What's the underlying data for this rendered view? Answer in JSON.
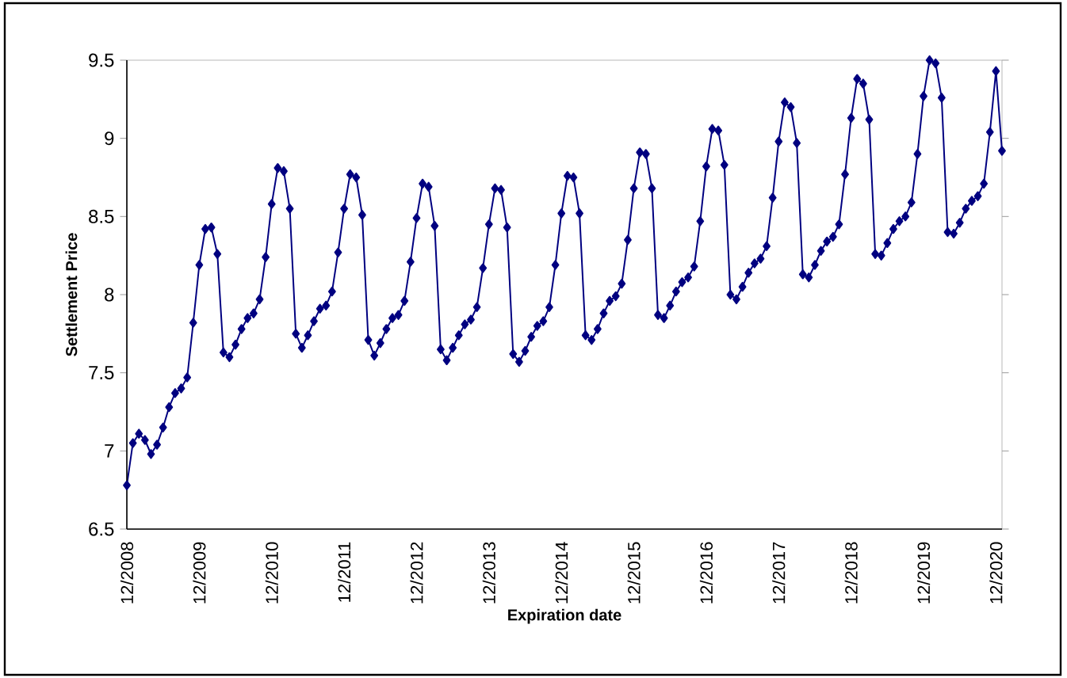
{
  "chart_data": {
    "type": "line",
    "xlabel": "Expiration date",
    "ylabel": "Settlement Price",
    "categories": [
      "12/2008",
      null,
      null,
      null,
      null,
      null,
      null,
      null,
      null,
      null,
      null,
      null,
      "12/2009",
      null,
      null,
      null,
      null,
      null,
      null,
      null,
      null,
      null,
      null,
      null,
      "12/2010",
      null,
      null,
      null,
      null,
      null,
      null,
      null,
      null,
      null,
      null,
      null,
      "12/2011",
      null,
      null,
      null,
      null,
      null,
      null,
      null,
      null,
      null,
      null,
      null,
      "12/2012",
      null,
      null,
      null,
      null,
      null,
      null,
      null,
      null,
      null,
      null,
      null,
      "12/2013",
      null,
      null,
      null,
      null,
      null,
      null,
      null,
      null,
      null,
      null,
      null,
      "12/2014",
      null,
      null,
      null,
      null,
      null,
      null,
      null,
      null,
      null,
      null,
      null,
      "12/2015",
      null,
      null,
      null,
      null,
      null,
      null,
      null,
      null,
      null,
      null,
      null,
      "12/2016",
      null,
      null,
      null,
      null,
      null,
      null,
      null,
      null,
      null,
      null,
      null,
      "12/2017",
      null,
      null,
      null,
      null,
      null,
      null,
      null,
      null,
      null,
      null,
      null,
      "12/2018",
      null,
      null,
      null,
      null,
      null,
      null,
      null,
      null,
      null,
      null,
      null,
      "12/2019",
      null,
      null,
      null,
      null,
      null,
      null,
      null,
      null,
      null,
      null,
      null,
      "12/2020",
      null
    ],
    "series": [
      {
        "color": "#000080",
        "values": [
          6.78,
          7.05,
          7.11,
          7.07,
          6.98,
          7.04,
          7.15,
          7.28,
          7.37,
          7.4,
          7.47,
          7.82,
          8.19,
          8.42,
          8.43,
          8.26,
          7.63,
          7.6,
          7.68,
          7.78,
          7.85,
          7.88,
          7.97,
          8.24,
          8.58,
          8.81,
          8.79,
          8.55,
          7.75,
          7.66,
          7.74,
          7.83,
          7.91,
          7.93,
          8.02,
          8.27,
          8.55,
          8.77,
          8.75,
          8.51,
          7.71,
          7.61,
          7.69,
          7.78,
          7.85,
          7.87,
          7.96,
          8.21,
          8.49,
          8.71,
          8.69,
          8.44,
          7.65,
          7.58,
          7.66,
          7.74,
          7.81,
          7.84,
          7.92,
          8.17,
          8.45,
          8.68,
          8.67,
          8.43,
          7.62,
          7.57,
          7.64,
          7.73,
          7.8,
          7.83,
          7.92,
          8.19,
          8.52,
          8.76,
          8.75,
          8.52,
          7.74,
          7.71,
          7.78,
          7.88,
          7.96,
          7.99,
          8.07,
          8.35,
          8.68,
          8.91,
          8.9,
          8.68,
          7.87,
          7.85,
          7.93,
          8.02,
          8.08,
          8.11,
          8.18,
          8.47,
          8.82,
          9.06,
          9.05,
          8.83,
          8.0,
          7.97,
          8.05,
          8.14,
          8.2,
          8.23,
          8.31,
          8.62,
          8.98,
          9.23,
          9.2,
          8.97,
          8.13,
          8.11,
          8.19,
          8.28,
          8.34,
          8.37,
          8.45,
          8.77,
          9.13,
          9.38,
          9.35,
          9.12,
          8.26,
          8.25,
          8.33,
          8.42,
          8.47,
          8.5,
          8.59,
          8.9,
          9.27,
          9.5,
          9.48,
          9.26,
          8.4,
          8.39,
          8.46,
          8.55,
          8.6,
          8.63,
          8.71,
          9.04,
          9.43,
          8.92
        ]
      }
    ],
    "ylim": [
      6.5,
      9.5
    ],
    "yticks": [
      6.5,
      7,
      7.5,
      8,
      8.5,
      9,
      9.5
    ],
    "marker": "diamond",
    "line_style": "solid"
  }
}
